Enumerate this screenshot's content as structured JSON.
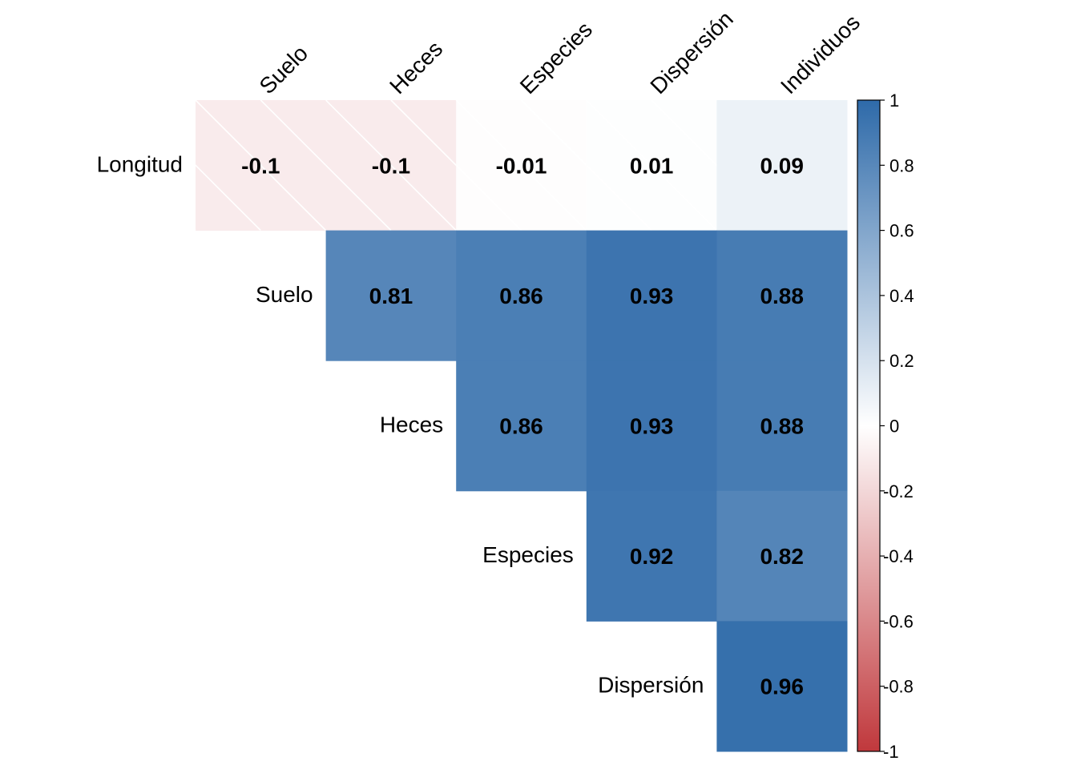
{
  "chart_data": {
    "type": "heatmap",
    "title": "",
    "variant": "upper-triangle correlation matrix",
    "column_labels": [
      "Suelo",
      "Heces",
      "Especies",
      "Dispersión",
      "Individuos"
    ],
    "row_labels": [
      "Longitud",
      "Suelo",
      "Heces",
      "Especies",
      "Dispersión"
    ],
    "rows": [
      {
        "label": "Longitud",
        "values": [
          -0.1,
          -0.1,
          -0.01,
          0.01,
          0.09
        ],
        "display": [
          "-0.1",
          "-0.1",
          "-0.01",
          "0.01",
          "0.09"
        ]
      },
      {
        "label": "Suelo",
        "values": [
          null,
          0.81,
          0.86,
          0.93,
          0.88
        ],
        "display": [
          "",
          "0.81",
          "0.86",
          "0.93",
          "0.88"
        ]
      },
      {
        "label": "Heces",
        "values": [
          null,
          null,
          0.86,
          0.93,
          0.88
        ],
        "display": [
          "",
          "",
          "0.86",
          "0.93",
          "0.88"
        ]
      },
      {
        "label": "Especies",
        "values": [
          null,
          null,
          null,
          0.92,
          0.82
        ],
        "display": [
          "",
          "",
          "",
          "0.92",
          "0.82"
        ]
      },
      {
        "label": "Dispersión",
        "values": [
          null,
          null,
          null,
          null,
          0.96
        ],
        "display": [
          "",
          "",
          "",
          "",
          "0.96"
        ]
      }
    ],
    "nonsignificant_hatched": [
      [
        0,
        0
      ],
      [
        0,
        1
      ],
      [
        0,
        2
      ],
      [
        0,
        3
      ]
    ],
    "colorbar": {
      "range": [
        -1,
        1
      ],
      "ticks": [
        1,
        0.8,
        0.6,
        0.4,
        0.2,
        0,
        -0.2,
        -0.4,
        -0.6,
        -0.8,
        -1
      ],
      "tick_labels": [
        "1",
        "0.8",
        "0.6",
        "0.4",
        "0.2",
        "0",
        "-0.2",
        "-0.4",
        "-0.6",
        "-0.8",
        "-1"
      ],
      "low_color": "#C0383C",
      "mid_color": "#FFFFFF",
      "high_color": "#2E6AA9"
    },
    "grid": false,
    "legend_position": "right"
  }
}
